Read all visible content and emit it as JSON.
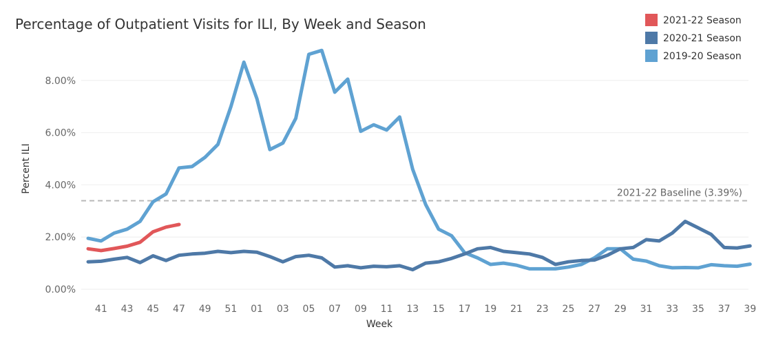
{
  "chart_data": {
    "type": "line",
    "title": "Percentage of Outpatient Visits for ILI, By Week and Season",
    "xlabel": "Week",
    "ylabel": "Percent ILI",
    "ylim": [
      0,
      9.5
    ],
    "y_ticks": [
      "0.00%",
      "2.00%",
      "4.00%",
      "6.00%",
      "8.00%"
    ],
    "y_tick_values": [
      0,
      2,
      4,
      6,
      8
    ],
    "x_tick_labels": [
      "41",
      "43",
      "45",
      "47",
      "49",
      "51",
      "01",
      "03",
      "05",
      "07",
      "09",
      "11",
      "13",
      "15",
      "17",
      "19",
      "21",
      "23",
      "25",
      "27",
      "29",
      "31",
      "33",
      "35",
      "37",
      "39"
    ],
    "weeks": [
      "40",
      "41",
      "42",
      "43",
      "44",
      "45",
      "46",
      "47",
      "48",
      "49",
      "50",
      "51",
      "52",
      "01",
      "02",
      "03",
      "04",
      "05",
      "06",
      "07",
      "08",
      "09",
      "10",
      "11",
      "12",
      "13",
      "14",
      "15",
      "16",
      "17",
      "18",
      "19",
      "20",
      "21",
      "22",
      "23",
      "24",
      "25",
      "26",
      "27",
      "28",
      "29",
      "30",
      "31",
      "32",
      "33",
      "34",
      "35",
      "36",
      "37",
      "38",
      "39"
    ],
    "grid": true,
    "legend_position": "top-right",
    "baseline": {
      "label": "2021-22 Baseline (3.39%)",
      "value": 3.39
    },
    "series": [
      {
        "name": "2019-20 Season",
        "color": "#5fa2d2",
        "values": [
          1.95,
          1.85,
          2.15,
          2.3,
          2.6,
          3.35,
          3.65,
          4.65,
          4.7,
          5.05,
          5.55,
          7.0,
          8.7,
          7.3,
          5.35,
          5.6,
          6.55,
          9.0,
          9.15,
          7.55,
          8.05,
          6.05,
          6.3,
          6.1,
          6.6,
          4.6,
          3.25,
          2.3,
          2.05,
          1.4,
          1.2,
          0.95,
          1.0,
          0.92,
          0.78,
          0.78,
          0.78,
          0.85,
          0.95,
          1.2,
          1.55,
          1.55,
          1.15,
          1.08,
          0.9,
          0.82,
          0.83,
          0.82,
          0.94,
          0.9,
          0.88,
          0.96
        ]
      },
      {
        "name": "2020-21 Season",
        "color": "#4e79a7",
        "values": [
          1.05,
          1.07,
          1.15,
          1.22,
          1.02,
          1.28,
          1.1,
          1.3,
          1.35,
          1.38,
          1.45,
          1.4,
          1.45,
          1.42,
          1.25,
          1.05,
          1.25,
          1.3,
          1.2,
          0.85,
          0.9,
          0.82,
          0.88,
          0.86,
          0.9,
          0.75,
          1.0,
          1.05,
          1.18,
          1.35,
          1.55,
          1.6,
          1.45,
          1.4,
          1.35,
          1.22,
          0.95,
          1.05,
          1.1,
          1.12,
          1.3,
          1.55,
          1.6,
          1.9,
          1.85,
          2.15,
          2.6,
          2.35,
          2.1,
          1.6,
          1.58,
          1.66
        ]
      },
      {
        "name": "2021-22 Season",
        "color": "#e15759",
        "values": [
          1.55,
          1.48,
          1.56,
          1.65,
          1.8,
          2.2,
          2.38,
          2.48
        ]
      }
    ],
    "legend_order": [
      "2021-22 Season",
      "2020-21 Season",
      "2019-20 Season"
    ]
  }
}
